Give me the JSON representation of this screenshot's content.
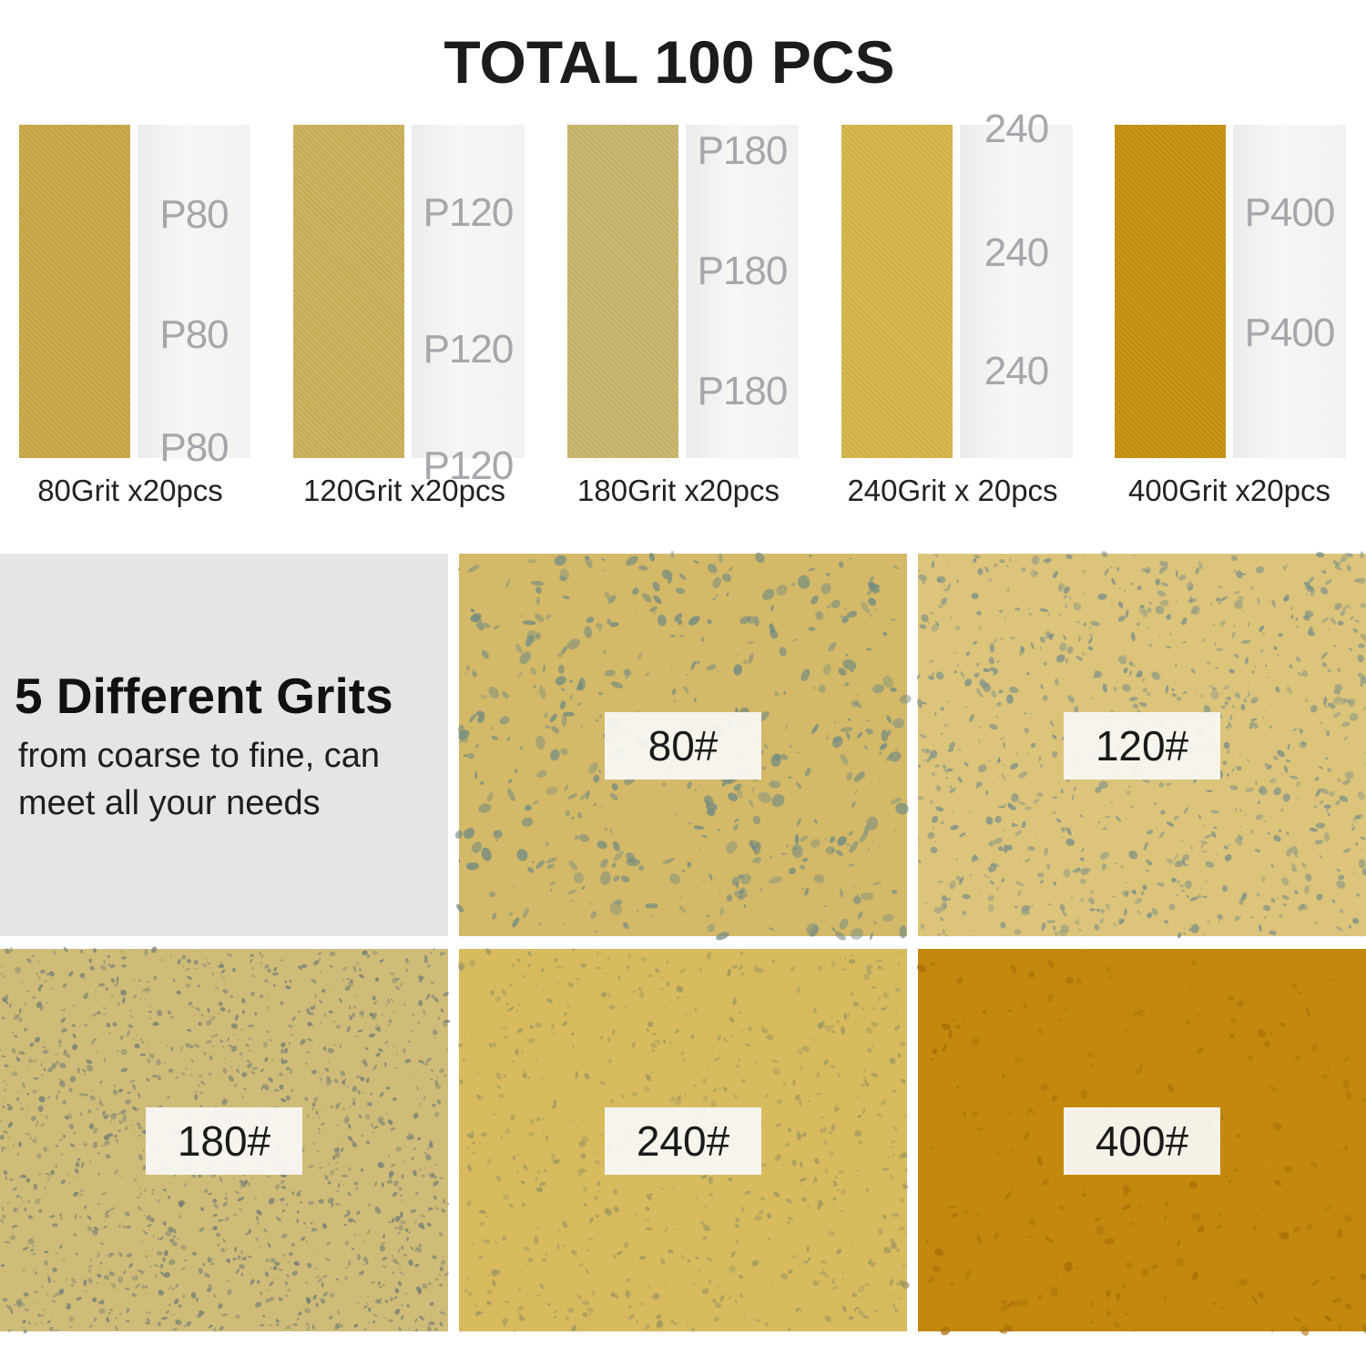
{
  "title": "TOTAL 100 PCS",
  "strips": [
    {
      "grit": "80",
      "caption": "80Grit x20pcs",
      "back_marks": [
        "P80",
        "P80",
        "P80"
      ],
      "color": "#c9a848"
    },
    {
      "grit": "120",
      "caption": "120Grit x20pcs",
      "back_marks": [
        "P120",
        "P120",
        "P120"
      ],
      "color": "#cdb158"
    },
    {
      "grit": "180",
      "caption": "180Grit x20pcs",
      "back_marks": [
        "P180",
        "P180",
        "P180"
      ],
      "color": "#c9b66a"
    },
    {
      "grit": "240",
      "caption": "240Grit x 20pcs",
      "back_marks": [
        "240",
        "240",
        "240"
      ],
      "color": "#d6b648"
    },
    {
      "grit": "400",
      "caption": "400Grit x20pcs",
      "back_marks": [
        "P400",
        "P400"
      ],
      "color": "#c7910f"
    }
  ],
  "intro": {
    "heading": "5 Different Grits",
    "body": "from coarse to fine, can meet all your needs"
  },
  "tiles": [
    {
      "label": "80#",
      "base": "#d4b968",
      "speck": "#6f8a82"
    },
    {
      "label": "120#",
      "base": "#dcc47a",
      "speck": "#7a8f88"
    },
    {
      "label": "180#",
      "base": "#cfbc78",
      "speck": "#707c74"
    },
    {
      "label": "240#",
      "base": "#d8bb5e",
      "speck": "#9a9660"
    },
    {
      "label": "400#",
      "base": "#c4880e",
      "speck": "#a86f08"
    }
  ]
}
